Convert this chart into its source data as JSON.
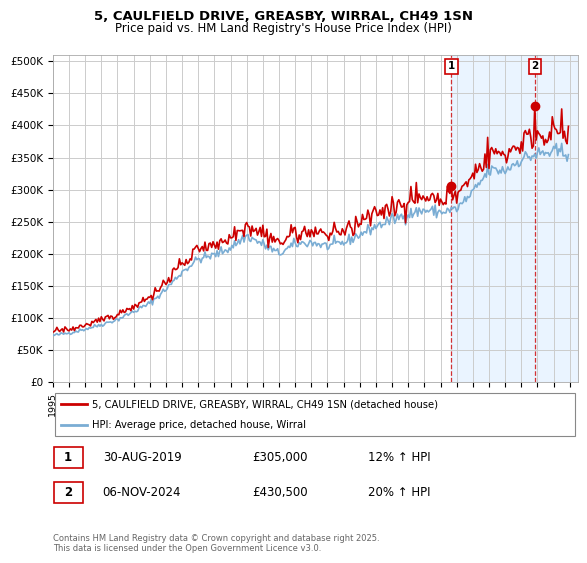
{
  "title": "5, CAULFIELD DRIVE, GREASBY, WIRRAL, CH49 1SN",
  "subtitle": "Price paid vs. HM Land Registry's House Price Index (HPI)",
  "ylabel_ticks": [
    "£0",
    "£50K",
    "£100K",
    "£150K",
    "£200K",
    "£250K",
    "£300K",
    "£350K",
    "£400K",
    "£450K",
    "£500K"
  ],
  "ytick_values": [
    0,
    50000,
    100000,
    150000,
    200000,
    250000,
    300000,
    350000,
    400000,
    450000,
    500000
  ],
  "ylim": [
    0,
    510000
  ],
  "xlim_start": 1995.0,
  "xlim_end": 2027.5,
  "red_line_label": "5, CAULFIELD DRIVE, GREASBY, WIRRAL, CH49 1SN (detached house)",
  "blue_line_label": "HPI: Average price, detached house, Wirral",
  "marker1_date": "30-AUG-2019",
  "marker1_price": 305000,
  "marker1_hpi": "12% ↑ HPI",
  "marker2_date": "06-NOV-2024",
  "marker2_price": 430500,
  "marker2_hpi": "20% ↑ HPI",
  "footnote": "Contains HM Land Registry data © Crown copyright and database right 2025.\nThis data is licensed under the Open Government Licence v3.0.",
  "bg_color": "#ffffff",
  "grid_color": "#cccccc",
  "red_color": "#cc0000",
  "blue_color": "#7aadd4",
  "shade_color": "#ddeeff",
  "marker_box_color": "#cc0000",
  "shade_x_start": 2019.67,
  "marker1_x": 2019.67,
  "marker2_x": 2024.85
}
